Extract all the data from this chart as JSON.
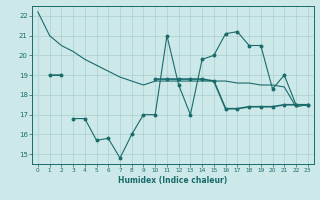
{
  "x": [
    0,
    1,
    2,
    3,
    4,
    5,
    6,
    7,
    8,
    9,
    10,
    11,
    12,
    13,
    14,
    15,
    16,
    17,
    18,
    19,
    20,
    21,
    22,
    23
  ],
  "line1": [
    22.2,
    21.0,
    20.5,
    20.2,
    19.8,
    19.5,
    19.2,
    18.9,
    18.7,
    18.5,
    18.7,
    18.7,
    18.7,
    18.7,
    18.7,
    18.7,
    18.7,
    18.6,
    18.6,
    18.5,
    18.5,
    18.4,
    17.4,
    17.5
  ],
  "line2": [
    null,
    null,
    null,
    16.8,
    16.8,
    15.7,
    15.8,
    14.8,
    16.0,
    17.0,
    17.0,
    21.0,
    18.5,
    17.0,
    19.8,
    20.0,
    21.1,
    21.2,
    20.5,
    20.5,
    18.3,
    19.0,
    17.5,
    17.5
  ],
  "line3": [
    null,
    19.0,
    19.0,
    null,
    null,
    null,
    null,
    null,
    null,
    null,
    18.8,
    18.8,
    18.8,
    18.8,
    18.8,
    18.7,
    17.3,
    17.3,
    17.4,
    17.4,
    17.4,
    17.5,
    17.5,
    17.5
  ],
  "background_color": "#cce8e8",
  "grid_color": "#aacfcf",
  "line_color": "#1a6b6b",
  "xlabel": "Humidex (Indice chaleur)",
  "ylim": [
    14.5,
    22.5
  ],
  "xlim": [
    -0.5,
    23.5
  ],
  "yticks": [
    15,
    16,
    17,
    18,
    19,
    20,
    21,
    22
  ],
  "xticks": [
    0,
    1,
    2,
    3,
    4,
    5,
    6,
    7,
    8,
    9,
    10,
    11,
    12,
    13,
    14,
    15,
    16,
    17,
    18,
    19,
    20,
    21,
    22,
    23
  ]
}
